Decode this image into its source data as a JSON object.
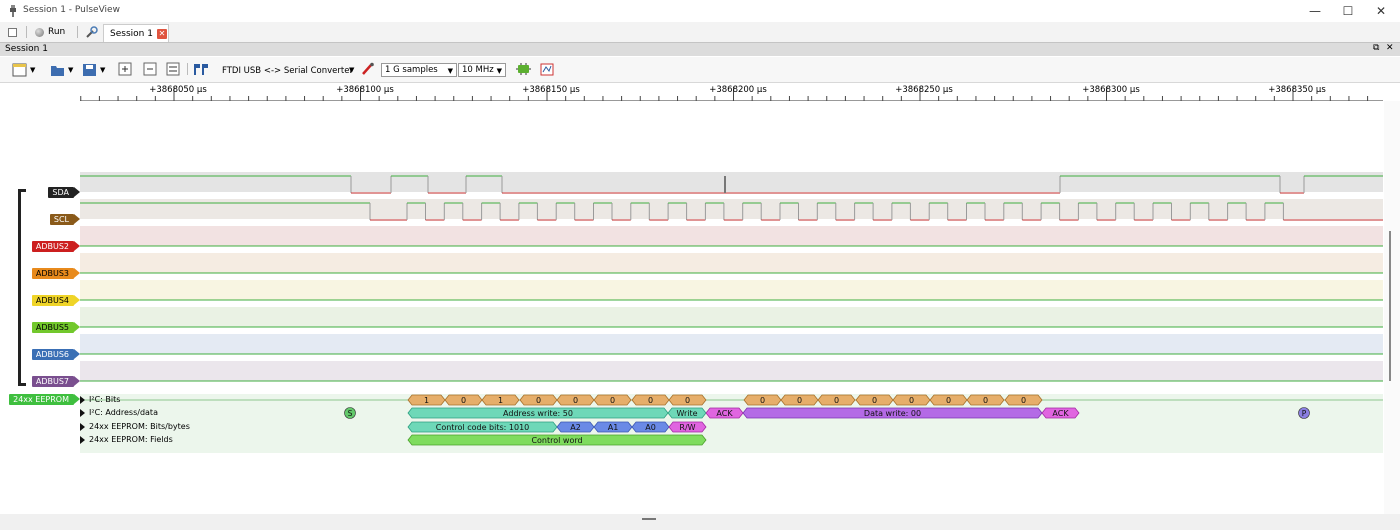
{
  "window": {
    "title": "Session 1 - PulseView",
    "minimize": "—",
    "maximize": "☐",
    "close": "✕"
  },
  "toolbar_top": {
    "run_label": "Run",
    "tab_label": "Session 1"
  },
  "session_bar": {
    "label": "Session 1"
  },
  "toolbar": {
    "device": "FTDI USB <-> Serial Converter",
    "samples": "1 G samples",
    "rate": "10 MHz"
  },
  "ruler": {
    "unit": "µs",
    "labels": [
      "+3868050 µs",
      "+3868100 µs",
      "+3868150 µs",
      "+3868200 µs",
      "+3868250 µs",
      "+3868300 µs",
      "+3868350 µs"
    ]
  },
  "channels": [
    {
      "name": "SDA",
      "color": "#222222",
      "text": "#ffffff"
    },
    {
      "name": "SCL",
      "color": "#8a5a1a",
      "text": "#ffffff"
    },
    {
      "name": "ADBUS2",
      "color": "#cc1f1f",
      "text": "#ffffff"
    },
    {
      "name": "ADBUS3",
      "color": "#e88a1c",
      "text": "#000000"
    },
    {
      "name": "ADBUS4",
      "color": "#efd428",
      "text": "#000000"
    },
    {
      "name": "ADBUS5",
      "color": "#72c82c",
      "text": "#000000"
    },
    {
      "name": "ADBUS6",
      "color": "#3a6fb5",
      "text": "#ffffff"
    },
    {
      "name": "ADBUS7",
      "color": "#7a4f8f",
      "text": "#ffffff"
    }
  ],
  "decoder": {
    "name": "24xx EEPROM",
    "color": "#3fbf3f",
    "rows": [
      "I²C: Bits",
      "I²C: Address/data",
      "24xx EEPROM: Bits/bytes",
      "24xx EEPROM: Fields"
    ],
    "bits": [
      "1",
      "0",
      "1",
      "0",
      "0",
      "0",
      "0",
      "0",
      "0",
      "0",
      "0",
      "0",
      "0",
      "0",
      "0",
      "0"
    ],
    "start": "S",
    "stop": "P",
    "address_write": "Address write: 50",
    "write": "Write",
    "ack": "ACK",
    "data_write": "Data write: 00",
    "control_code": "Control code bits: 1010",
    "a2": "A2",
    "a1": "A1",
    "a0": "A0",
    "rw": "R/W",
    "control_word": "Control word"
  }
}
